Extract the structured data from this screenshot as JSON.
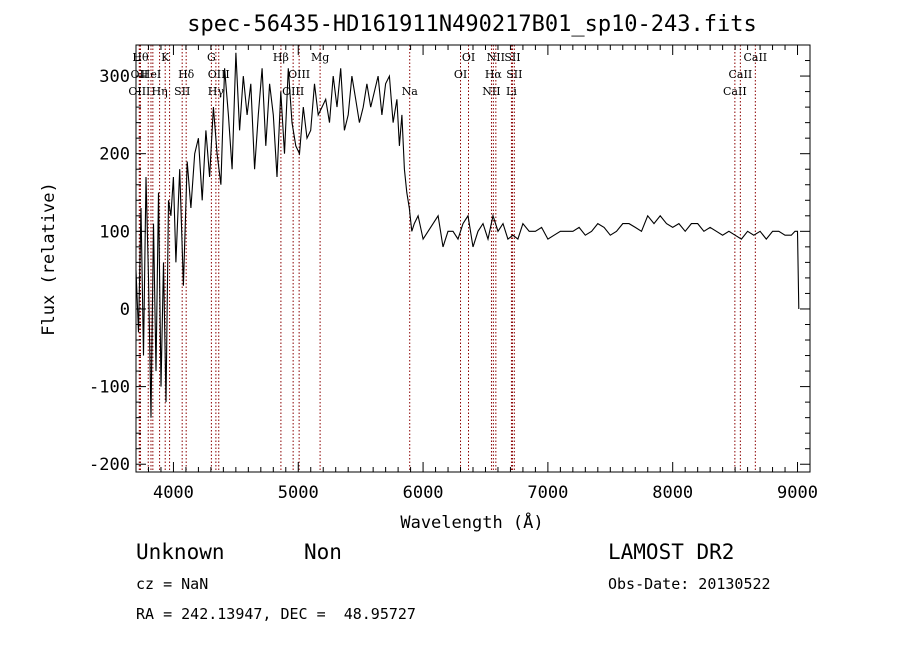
{
  "chart_data": {
    "type": "line",
    "title": "spec-56435-HD161911N490217B01_sp10-243.fits",
    "xlabel": "Wavelength (Å)",
    "ylabel": "Flux (relative)",
    "xlim": [
      3700,
      9100
    ],
    "ylim": [
      -210,
      340
    ],
    "x_ticks": [
      4000,
      5000,
      6000,
      7000,
      8000,
      9000
    ],
    "x_tick_labels": [
      "4000",
      "5000",
      "6000",
      "7000",
      "8000",
      "9000"
    ],
    "y_ticks": [
      -200,
      -100,
      0,
      100,
      200,
      300
    ],
    "y_tick_labels": [
      "-200",
      "-100",
      "0",
      "100",
      "200",
      "300"
    ],
    "grid": false,
    "line_color": "#000000",
    "marker_color": "#8b0000",
    "series": [
      {
        "x": [
          3700,
          3720,
          3740,
          3760,
          3780,
          3800,
          3820,
          3840,
          3860,
          3880,
          3900,
          3920,
          3940,
          3960,
          3980,
          4000,
          4020,
          4050,
          4080,
          4110,
          4140,
          4170,
          4200,
          4230,
          4260,
          4290,
          4320,
          4350,
          4380,
          4410,
          4440,
          4470,
          4500,
          4530,
          4560,
          4590,
          4620,
          4650,
          4680,
          4710,
          4740,
          4770,
          4800,
          4830,
          4860,
          4890,
          4920,
          4950,
          4980,
          5010,
          5040,
          5070,
          5100,
          5130,
          5160,
          5190,
          5220,
          5250,
          5280,
          5310,
          5340,
          5370,
          5400,
          5430,
          5460,
          5490,
          5520,
          5550,
          5580,
          5610,
          5640,
          5670,
          5700,
          5730,
          5760,
          5790,
          5810,
          5830,
          5850,
          5870,
          5890,
          5910,
          5930,
          5960,
          6000,
          6040,
          6080,
          6120,
          6160,
          6200,
          6240,
          6280,
          6320,
          6360,
          6380,
          6400,
          6440,
          6480,
          6520,
          6560,
          6600,
          6640,
          6680,
          6720,
          6760,
          6800,
          6850,
          6900,
          6950,
          7000,
          7050,
          7100,
          7150,
          7200,
          7250,
          7300,
          7350,
          7400,
          7450,
          7500,
          7550,
          7600,
          7650,
          7700,
          7750,
          7800,
          7850,
          7900,
          7950,
          8000,
          8050,
          8100,
          8150,
          8200,
          8250,
          8300,
          8350,
          8400,
          8450,
          8500,
          8550,
          8600,
          8650,
          8700,
          8750,
          8800,
          8850,
          8900,
          8950,
          8980,
          9000,
          9010
        ],
        "y": [
          50,
          -30,
          130,
          -60,
          170,
          40,
          -140,
          110,
          -80,
          150,
          -100,
          60,
          -120,
          140,
          120,
          170,
          60,
          180,
          30,
          190,
          130,
          200,
          220,
          140,
          230,
          170,
          260,
          200,
          160,
          310,
          250,
          180,
          330,
          230,
          300,
          250,
          290,
          180,
          250,
          310,
          210,
          290,
          250,
          170,
          280,
          200,
          310,
          240,
          210,
          200,
          260,
          220,
          230,
          290,
          250,
          260,
          270,
          240,
          300,
          260,
          310,
          230,
          250,
          300,
          270,
          240,
          260,
          290,
          260,
          280,
          300,
          250,
          290,
          300,
          240,
          270,
          210,
          250,
          180,
          150,
          130,
          100,
          110,
          120,
          90,
          100,
          110,
          120,
          80,
          100,
          100,
          90,
          110,
          120,
          100,
          80,
          100,
          110,
          90,
          120,
          100,
          110,
          90,
          95,
          90,
          110,
          100,
          100,
          105,
          90,
          95,
          100,
          100,
          100,
          105,
          95,
          100,
          110,
          105,
          95,
          100,
          110,
          110,
          105,
          100,
          120,
          110,
          120,
          110,
          105,
          110,
          100,
          110,
          110,
          100,
          105,
          100,
          95,
          100,
          95,
          90,
          100,
          95,
          100,
          90,
          100,
          100,
          95,
          95,
          100,
          100,
          0
        ]
      }
    ],
    "line_markers": [
      {
        "x": 3736,
        "label": "Hθ",
        "row": 0
      },
      {
        "x": 3727,
        "label": "OII",
        "row": 1
      },
      {
        "x": 3727,
        "label": "OIII",
        "row": 2
      },
      {
        "x": 3798,
        "label": "",
        "row": -1
      },
      {
        "x": 3820,
        "label": "HeI",
        "row": 1
      },
      {
        "x": 3835,
        "label": "",
        "row": -1
      },
      {
        "x": 3889,
        "label": "Hη",
        "row": 2
      },
      {
        "x": 3934,
        "label": "K",
        "row": 0
      },
      {
        "x": 3969,
        "label": "",
        "row": -1
      },
      {
        "x": 4070,
        "label": "SII",
        "row": 2
      },
      {
        "x": 4102,
        "label": "Hδ",
        "row": 1
      },
      {
        "x": 4304,
        "label": "G",
        "row": 0
      },
      {
        "x": 4340,
        "label": "Hγ",
        "row": 2
      },
      {
        "x": 4363,
        "label": "OIII",
        "row": 1
      },
      {
        "x": 4861,
        "label": "Hβ",
        "row": 0
      },
      {
        "x": 4959,
        "label": "OIII",
        "row": 2
      },
      {
        "x": 5007,
        "label": "OIII",
        "row": 1
      },
      {
        "x": 5175,
        "label": "Mg",
        "row": 0
      },
      {
        "x": 5893,
        "label": "Na",
        "row": 2
      },
      {
        "x": 6300,
        "label": "OI",
        "row": 1
      },
      {
        "x": 6364,
        "label": "OI",
        "row": 0
      },
      {
        "x": 6548,
        "label": "NII",
        "row": 2
      },
      {
        "x": 6563,
        "label": "Hα",
        "row": 1
      },
      {
        "x": 6583,
        "label": "NII",
        "row": 0
      },
      {
        "x": 6708,
        "label": "Li",
        "row": 2
      },
      {
        "x": 6716,
        "label": "SII",
        "row": 0
      },
      {
        "x": 6731,
        "label": "SII",
        "row": 1
      },
      {
        "x": 8498,
        "label": "CaII",
        "row": 2
      },
      {
        "x": 8542,
        "label": "CaII",
        "row": 1
      },
      {
        "x": 8662,
        "label": "CaII",
        "row": 0
      }
    ]
  },
  "info": {
    "class_label": "Unknown",
    "subclass_label": "Non",
    "survey_label": "LAMOST DR2",
    "cz_label": "cz = NaN",
    "obs_date_label": "Obs-Date: 20130522",
    "coords_label": "RA = 242.13947, DEC =  48.95727"
  }
}
